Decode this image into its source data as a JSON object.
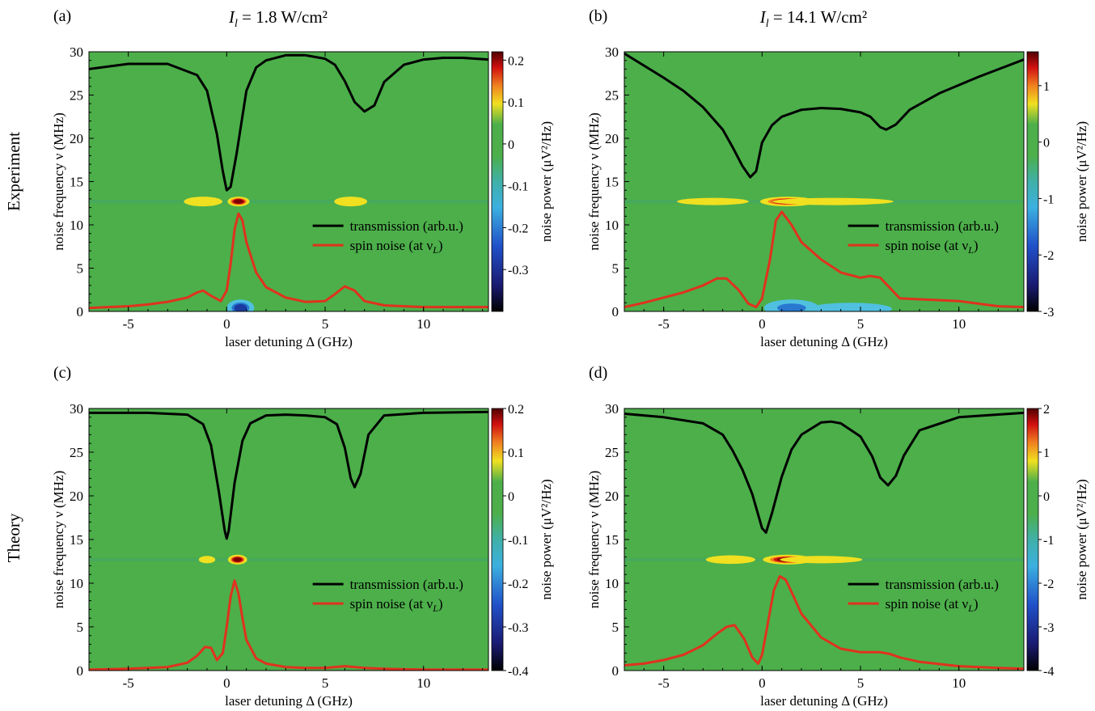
{
  "figure": {
    "row_labels": [
      "Experiment",
      "Theory"
    ]
  },
  "chart_data": [
    {
      "type": "heatmap",
      "panel_label": "(a)",
      "title_prefix": "I",
      "title_sub": "l",
      "title_suffix": " = 1.8 W/cm²",
      "xlabel": "laser detuning Δ (GHz)",
      "ylabel": "noise frequency ν (MHz)",
      "colorbar_label": "noise power (μV²/Hz)",
      "xlim": [
        -7,
        13.3
      ],
      "ylim": [
        0,
        30
      ],
      "xticks": [
        -5,
        0,
        5,
        10
      ],
      "yticks": [
        0,
        5,
        10,
        15,
        20,
        25,
        30
      ],
      "colorbar": {
        "range": [
          -0.4,
          0.22
        ],
        "ticks": [
          -0.3,
          -0.2,
          -0.1,
          0,
          0.1,
          0.2
        ],
        "tick_labels": [
          "-0.3",
          "-0.2",
          "-0.1",
          "0",
          "0.1",
          "0.2"
        ]
      },
      "legend": {
        "position": "right",
        "entries": [
          "transmission (arb.u.)",
          "spin noise (at ν",
          ")"
        ],
        "entry_sub": "L"
      },
      "spin_noise_line_freq_MHz": 12.7,
      "series": [
        {
          "name": "transmission (arb.u.)",
          "color": "#000000",
          "x": [
            -7,
            -5,
            -3,
            -1.5,
            -1,
            -0.5,
            -0.2,
            0,
            0.2,
            0.5,
            1,
            1.5,
            2,
            3,
            4,
            5,
            5.5,
            6,
            6.5,
            7,
            7.5,
            8,
            9,
            10,
            11,
            12,
            13.3
          ],
          "y": [
            28,
            28.6,
            28.6,
            27.3,
            25.5,
            20.5,
            16.2,
            14,
            14.4,
            18.2,
            25.5,
            28.2,
            29,
            29.6,
            29.6,
            29.2,
            28.5,
            26.6,
            24.2,
            23.1,
            23.8,
            26.5,
            28.5,
            29.1,
            29.3,
            29.3,
            29.1
          ]
        },
        {
          "name": "spin noise (at νL)",
          "color": "#e0321e",
          "x": [
            -7,
            -6,
            -5,
            -4,
            -3,
            -2,
            -1.5,
            -1.2,
            -0.8,
            -0.3,
            0,
            0.2,
            0.4,
            0.6,
            0.8,
            1,
            1.5,
            2,
            3,
            4,
            5,
            5.5,
            6,
            6.5,
            7,
            8,
            9,
            10,
            11,
            12,
            13.3
          ],
          "y": [
            0.4,
            0.5,
            0.6,
            0.8,
            1.1,
            1.6,
            2.2,
            2.4,
            1.8,
            1.2,
            2.4,
            5.5,
            9.5,
            11.3,
            10.5,
            8,
            4.5,
            2.8,
            1.6,
            1.1,
            1.2,
            2,
            2.9,
            2.4,
            1.2,
            0.7,
            0.6,
            0.5,
            0.5,
            0.5,
            0.5
          ]
        }
      ],
      "heatmap_features": [
        {
          "x": 0.6,
          "y": 12.7,
          "sx": 0.4,
          "sy": 0.4,
          "level": 1.0
        },
        {
          "x": -1.2,
          "y": 12.7,
          "sx": 0.7,
          "sy": 0.4,
          "level": 0.15
        },
        {
          "x": 6.3,
          "y": 12.7,
          "sx": 0.6,
          "sy": 0.4,
          "level": 0.12
        },
        {
          "x": 0.7,
          "y": 0.4,
          "sx": 0.5,
          "sy": 0.7,
          "level": -0.7
        }
      ]
    },
    {
      "type": "heatmap",
      "panel_label": "(b)",
      "title_prefix": "I",
      "title_sub": "l",
      "title_suffix": " = 14.1 W/cm²",
      "xlabel": "laser detuning Δ (GHz)",
      "ylabel": "noise frequency ν (MHz)",
      "colorbar_label": "noise power (μV²/Hz)",
      "xlim": [
        -7,
        13.3
      ],
      "ylim": [
        0,
        30
      ],
      "xticks": [
        -5,
        0,
        5,
        10
      ],
      "yticks": [
        0,
        5,
        10,
        15,
        20,
        25,
        30
      ],
      "colorbar": {
        "range": [
          -3,
          1.6
        ],
        "ticks": [
          -3,
          -2,
          -1,
          0,
          1
        ],
        "tick_labels": [
          "-3",
          "-2",
          "-1",
          "0",
          "1"
        ]
      },
      "legend": {
        "position": "right",
        "entries": [
          "transmission (arb.u.)",
          "spin noise (at ν",
          ")"
        ],
        "entry_sub": "L"
      },
      "spin_noise_line_freq_MHz": 12.7,
      "series": [
        {
          "name": "transmission (arb.u.)",
          "color": "#000000",
          "x": [
            -7,
            -6,
            -5,
            -4,
            -3,
            -2,
            -1.5,
            -1,
            -0.6,
            -0.3,
            0,
            0.5,
            1,
            2,
            3,
            4,
            5,
            5.5,
            6,
            6.3,
            6.8,
            7.5,
            9,
            11,
            13.3
          ],
          "y": [
            29.8,
            28.4,
            27,
            25.5,
            23.6,
            21,
            19,
            16.8,
            15.5,
            16.2,
            19.5,
            21.5,
            22.5,
            23.3,
            23.5,
            23.4,
            23,
            22.5,
            21.3,
            21,
            21.6,
            23.3,
            25.2,
            27.1,
            29.1
          ]
        },
        {
          "name": "spin noise (at νL)",
          "color": "#e0321e",
          "x": [
            -7,
            -6,
            -5,
            -4,
            -3,
            -2.3,
            -1.8,
            -1.2,
            -0.7,
            -0.3,
            0,
            0.4,
            0.7,
            1,
            1.5,
            2,
            3,
            4,
            5,
            5.5,
            6,
            7,
            8,
            10,
            12,
            13.3
          ],
          "y": [
            0.5,
            1,
            1.6,
            2.2,
            3,
            3.8,
            3.8,
            2.5,
            0.9,
            0.5,
            1.5,
            6,
            10.5,
            11.5,
            10,
            8,
            6,
            4.5,
            3.9,
            4.1,
            3.9,
            1.5,
            1.4,
            1.2,
            0.6,
            0.5
          ]
        }
      ],
      "heatmap_features": [
        {
          "x": 1.3,
          "y": 12.7,
          "sx": 1.0,
          "sy": 0.4,
          "level": 1.0
        },
        {
          "x": 3.6,
          "y": 12.7,
          "sx": 2.2,
          "sy": 0.3,
          "level": 0.3
        },
        {
          "x": -2.5,
          "y": 12.7,
          "sx": 1.3,
          "sy": 0.3,
          "level": 0.3
        },
        {
          "x": 1.5,
          "y": 0.4,
          "sx": 1.0,
          "sy": 0.7,
          "level": -0.6
        },
        {
          "x": 4.5,
          "y": 0.3,
          "sx": 1.5,
          "sy": 0.5,
          "level": -0.3
        }
      ]
    },
    {
      "type": "heatmap",
      "panel_label": "(c)",
      "xlabel": "laser detuning Δ (GHz)",
      "ylabel": "noise frequency ν (MHz)",
      "colorbar_label": "noise power (μV²/Hz)",
      "xlim": [
        -7,
        13.3
      ],
      "ylim": [
        0,
        30
      ],
      "xticks": [
        -5,
        0,
        5,
        10
      ],
      "yticks": [
        0,
        5,
        10,
        15,
        20,
        25,
        30
      ],
      "colorbar": {
        "range": [
          -0.4,
          0.2
        ],
        "ticks": [
          -0.4,
          -0.3,
          -0.2,
          -0.1,
          0,
          0.1,
          0.2
        ],
        "tick_labels": [
          "-0.4",
          "-0.3",
          "-0.2",
          "-0.1",
          "0",
          "0.1",
          "0.2"
        ]
      },
      "legend": {
        "position": "right",
        "entries": [
          "transmission (arb.u.)",
          "spin noise (at ν",
          ")"
        ],
        "entry_sub": "L"
      },
      "spin_noise_line_freq_MHz": 12.7,
      "series": [
        {
          "name": "transmission (arb.u.)",
          "color": "#000000",
          "x": [
            -7,
            -4,
            -2,
            -1.2,
            -0.8,
            -0.4,
            -0.1,
            0,
            0.1,
            0.4,
            0.8,
            1.2,
            2,
            3,
            4,
            5,
            5.6,
            6,
            6.3,
            6.5,
            6.8,
            7.2,
            8,
            10,
            13.3
          ],
          "y": [
            29.5,
            29.5,
            29.3,
            28.2,
            25.8,
            20.5,
            16,
            15.1,
            16,
            21.5,
            26.3,
            28.3,
            29.2,
            29.3,
            29.2,
            29,
            28.2,
            25.5,
            22,
            21,
            22.5,
            27,
            29.2,
            29.5,
            29.6
          ]
        },
        {
          "name": "spin noise (at νL)",
          "color": "#e0321e",
          "x": [
            -7,
            -5,
            -3,
            -2,
            -1.5,
            -1.1,
            -0.8,
            -0.5,
            -0.2,
            0,
            0.2,
            0.4,
            0.6,
            0.8,
            1,
            1.5,
            2,
            3,
            4,
            5,
            6,
            7,
            8,
            10,
            13.3
          ],
          "y": [
            0.1,
            0.2,
            0.4,
            0.9,
            1.7,
            2.7,
            2.6,
            1.2,
            2,
            5,
            8.5,
            10.3,
            8.8,
            6,
            3.5,
            1.4,
            0.8,
            0.4,
            0.3,
            0.3,
            0.5,
            0.3,
            0.2,
            0.1,
            0.1
          ]
        }
      ],
      "heatmap_features": [
        {
          "x": 0.55,
          "y": 12.7,
          "sx": 0.35,
          "sy": 0.4,
          "level": 1.0
        },
        {
          "x": -1.0,
          "y": 12.7,
          "sx": 0.3,
          "sy": 0.3,
          "level": 0.35
        }
      ]
    },
    {
      "type": "heatmap",
      "panel_label": "(d)",
      "xlabel": "laser detuning Δ (GHz)",
      "ylabel": "noise frequency ν (MHz)",
      "colorbar_label": "noise power (μV²/Hz)",
      "xlim": [
        -7,
        13.3
      ],
      "ylim": [
        0,
        30
      ],
      "xticks": [
        -5,
        0,
        5,
        10
      ],
      "yticks": [
        0,
        5,
        10,
        15,
        20,
        25,
        30
      ],
      "colorbar": {
        "range": [
          -4,
          2
        ],
        "ticks": [
          -4,
          -3,
          -2,
          -1,
          0,
          1,
          2
        ],
        "tick_labels": [
          "-4",
          "-3",
          "-2",
          "-1",
          "0",
          "1",
          "2"
        ]
      },
      "legend": {
        "position": "right",
        "entries": [
          "transmission (arb.u.)",
          "spin noise (at ν",
          ")"
        ],
        "entry_sub": "L"
      },
      "spin_noise_line_freq_MHz": 12.7,
      "series": [
        {
          "name": "transmission (arb.u.)",
          "color": "#000000",
          "x": [
            -7,
            -5,
            -3,
            -2,
            -1.5,
            -1,
            -0.5,
            0,
            0.2,
            0.5,
            1,
            1.5,
            2,
            3,
            3.5,
            4,
            5,
            5.6,
            6,
            6.4,
            6.8,
            7.2,
            8,
            10,
            13.3
          ],
          "y": [
            29.4,
            29,
            28.3,
            27,
            25.2,
            23,
            20.2,
            16.3,
            15.8,
            18,
            22.2,
            25.3,
            27,
            28.4,
            28.5,
            28.3,
            26.8,
            24.5,
            22.1,
            21.2,
            22.3,
            24.6,
            27.5,
            29,
            29.5
          ]
        },
        {
          "name": "spin noise (at νL)",
          "color": "#e0321e",
          "x": [
            -7,
            -6,
            -5,
            -4,
            -3,
            -2.3,
            -1.8,
            -1.4,
            -0.9,
            -0.5,
            -0.2,
            0,
            0.3,
            0.6,
            0.9,
            1.2,
            1.6,
            2,
            3,
            4,
            5,
            6,
            6.5,
            7,
            8,
            10,
            12,
            13.3
          ],
          "y": [
            0.6,
            0.8,
            1.2,
            1.8,
            2.9,
            4.2,
            5,
            5.2,
            3.6,
            1.5,
            0.8,
            1.8,
            5.5,
            9.2,
            10.8,
            10.4,
            8.5,
            6.5,
            3.8,
            2.5,
            2.1,
            2.1,
            1.9,
            1.5,
            1,
            0.5,
            0.3,
            0.2
          ]
        }
      ],
      "heatmap_features": [
        {
          "x": 1.3,
          "y": 12.7,
          "sx": 0.9,
          "sy": 0.4,
          "level": 1.0
        },
        {
          "x": 3.0,
          "y": 12.7,
          "sx": 1.5,
          "sy": 0.3,
          "level": 0.25
        },
        {
          "x": -1.6,
          "y": 12.7,
          "sx": 0.9,
          "sy": 0.35,
          "level": 0.45
        }
      ]
    }
  ]
}
